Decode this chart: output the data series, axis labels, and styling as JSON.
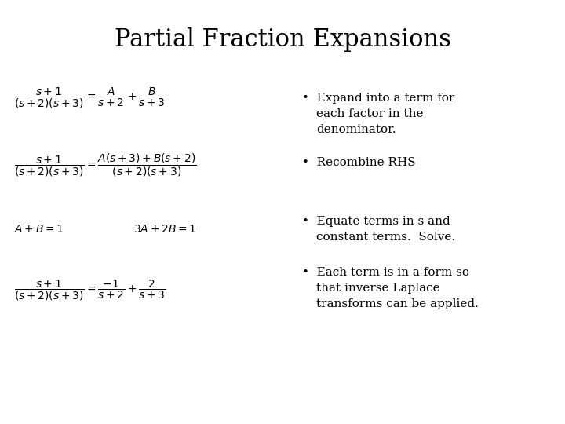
{
  "title": "Partial Fraction Expansions",
  "background_color": "#ffffff",
  "text_color": "#000000",
  "title_fontsize": 22,
  "title_font": "DejaVu Serif",
  "eq1": "$\\dfrac{s+1}{(s+2)(s+3)} = \\dfrac{A}{s+2} + \\dfrac{B}{s+3}$",
  "eq2": "$\\dfrac{s+1}{(s+2)(s+3)} = \\dfrac{A(s+3) + B(s+2)}{(s+2)(s+3)}$",
  "eq3": "$A + B = 1$",
  "eq4": "$3A + 2B = 1$",
  "eq5": "$\\dfrac{s+1}{(s+2)(s+3)} = \\dfrac{-1}{s+2} + \\dfrac{2}{s+3}$",
  "bullet1a": "Expand into a term for",
  "bullet1b": "each factor in the",
  "bullet1c": "denominator.",
  "bullet2": "Recombine RHS",
  "bullet3a": "Equate terms in s and",
  "bullet3b": "constant terms.  Solve.",
  "bullet4a": "Each term is in a form so",
  "bullet4b": "that inverse Laplace",
  "bullet4c": "transforms can be applied.",
  "eq_fontsize": 10,
  "bullet_fontsize": 11
}
